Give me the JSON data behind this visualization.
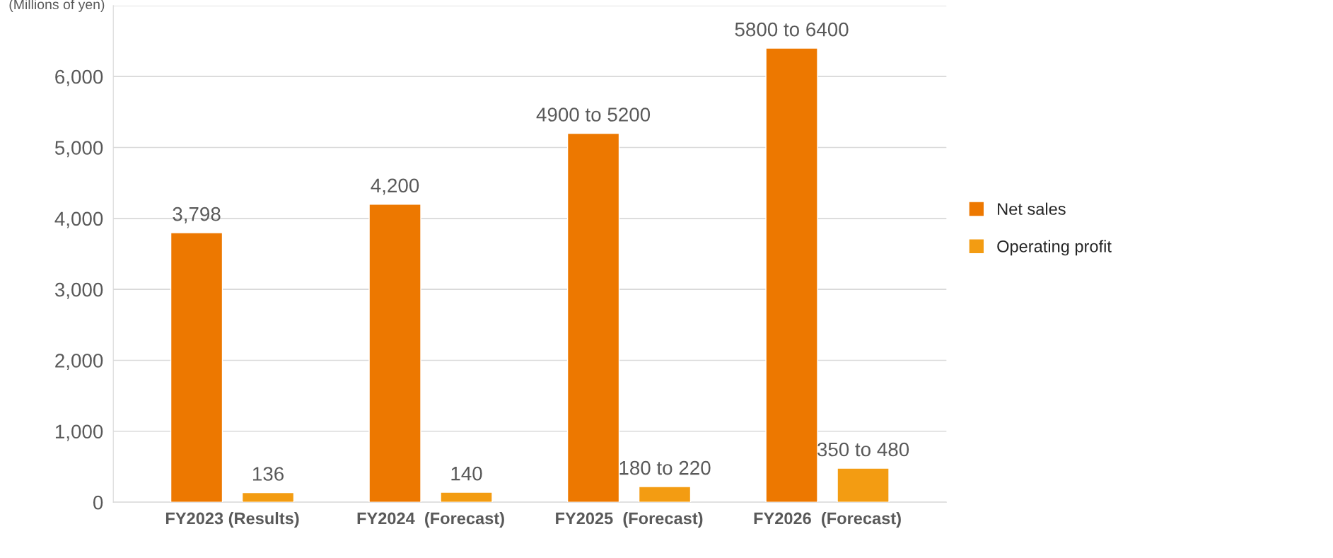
{
  "chart_data": {
    "type": "bar",
    "ylabel": "(Millions of yen)",
    "categories": [
      "FY2023 (Results)",
      "FY2024  (Forecast)",
      "FY2025  (Forecast)",
      "FY2026  (Forecast)"
    ],
    "series": [
      {
        "name": "Net sales",
        "color": "#ed7800",
        "values": [
          3798,
          4200,
          5200,
          6400
        ],
        "value_labels": [
          "3,798",
          "4,200",
          "4900 to 5200",
          "5800 to 6400"
        ]
      },
      {
        "name": "Operating profit",
        "color": "#f39c12",
        "values": [
          136,
          140,
          220,
          480
        ],
        "value_labels": [
          "136",
          "140",
          "180 to 220",
          "350 to 480"
        ]
      }
    ],
    "ylim": [
      0,
      7000
    ],
    "yticks": [
      {
        "value": 0,
        "label": "0"
      },
      {
        "value": 1000,
        "label": "1,000"
      },
      {
        "value": 2000,
        "label": "2,000"
      },
      {
        "value": 3000,
        "label": "3,000"
      },
      {
        "value": 4000,
        "label": "4,000"
      },
      {
        "value": 5000,
        "label": "5,000"
      },
      {
        "value": 6000,
        "label": "6,000"
      },
      {
        "value": 7000,
        "label": null
      }
    ],
    "grid": "y",
    "legend": "right"
  }
}
